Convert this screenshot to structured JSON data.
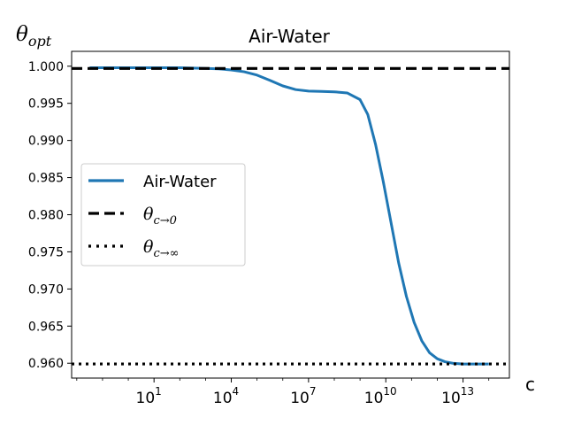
{
  "chart_data": {
    "type": "line",
    "title": "Air-Water",
    "xlabel": "c",
    "ylabel": "θ",
    "ylabel_sub": "opt",
    "xscale": "log",
    "xlim_log10": [
      -2.2,
      14.8
    ],
    "ylim": [
      0.958,
      1.002
    ],
    "yticks": [
      "0.960",
      "0.965",
      "0.970",
      "0.975",
      "0.980",
      "0.985",
      "0.990",
      "0.995",
      "1.000"
    ],
    "xticks": [
      {
        "base": "10",
        "exp": "1"
      },
      {
        "base": "10",
        "exp": "4"
      },
      {
        "base": "10",
        "exp": "7"
      },
      {
        "base": "10",
        "exp": "10"
      },
      {
        "base": "10",
        "exp": "13"
      }
    ],
    "grid": false,
    "legend_position": "center-left",
    "series": [
      {
        "name": "Air-Water",
        "color": "#1f77b4",
        "style": "solid",
        "x_log10": [
          -1.5,
          0,
          1,
          2,
          3,
          3.5,
          4,
          4.5,
          5,
          5.5,
          6,
          6.5,
          7,
          7.5,
          8,
          8.5,
          9,
          9.3,
          9.6,
          9.9,
          10.2,
          10.5,
          10.8,
          11.1,
          11.4,
          11.7,
          12,
          12.3,
          12.6,
          13,
          13.5,
          14
        ],
        "y": [
          0.9998,
          0.9998,
          0.9998,
          0.9998,
          0.9997,
          0.99965,
          0.9995,
          0.99925,
          0.9988,
          0.9981,
          0.99735,
          0.99685,
          0.99665,
          0.9966,
          0.99655,
          0.9964,
          0.9955,
          0.9935,
          0.9895,
          0.9845,
          0.979,
          0.9735,
          0.969,
          0.9655,
          0.963,
          0.9614,
          0.9606,
          0.9602,
          0.96,
          0.9599,
          0.9599,
          0.9599
        ]
      },
      {
        "name": "θc→0",
        "color": "#000000",
        "style": "dashed",
        "x_log10": [
          -2.2,
          14.8
        ],
        "y": [
          0.9997,
          0.9997
        ]
      },
      {
        "name": "θc→∞",
        "color": "#000000",
        "style": "dotted",
        "x_log10": [
          -2.2,
          14.8
        ],
        "y": [
          0.9599,
          0.9599
        ]
      }
    ],
    "legend": [
      {
        "label": "Air-Water",
        "style": "solid",
        "color": "#1f77b4"
      },
      {
        "base": "θ",
        "sub": "c→0",
        "style": "dashed",
        "color": "#000000"
      },
      {
        "base": "θ",
        "sub": "c→∞",
        "style": "dotted",
        "color": "#000000"
      }
    ]
  }
}
